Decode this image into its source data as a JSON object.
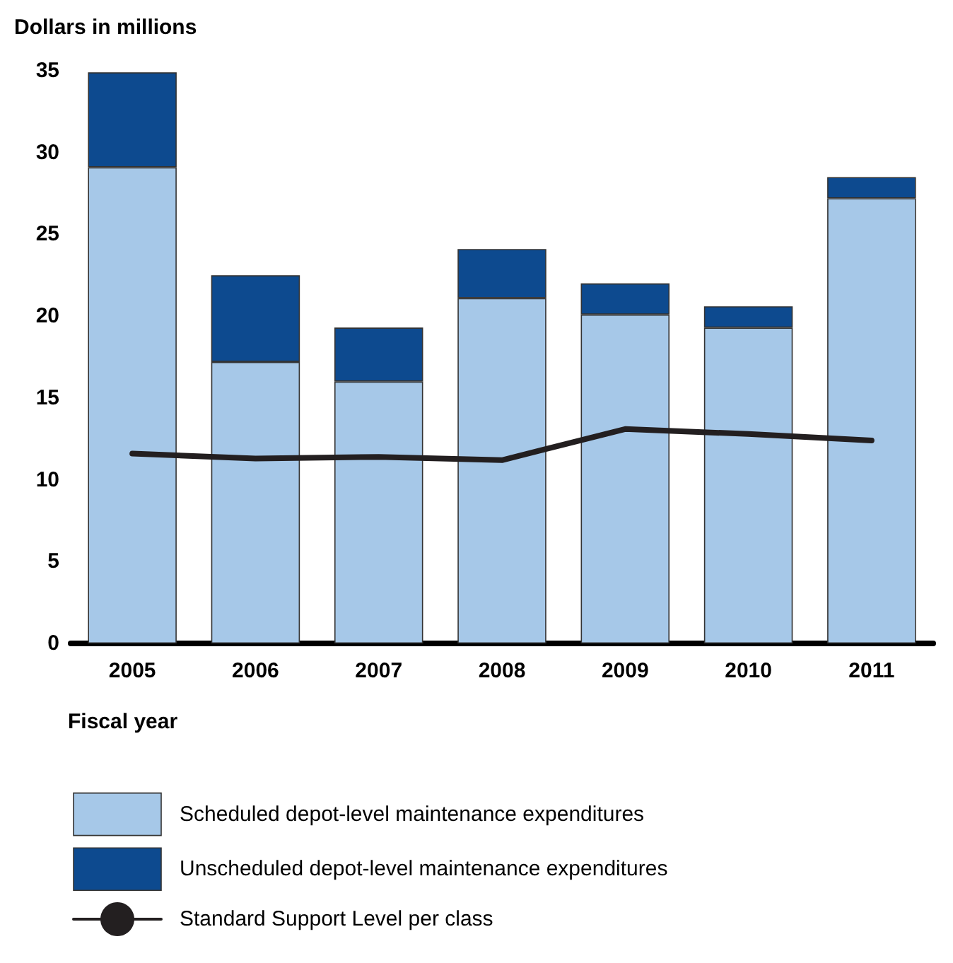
{
  "chart_data": {
    "type": "bar",
    "stacked": true,
    "ylabel": "Dollars in millions",
    "xlabel": "Fiscal year",
    "categories": [
      "2005",
      "2006",
      "2007",
      "2008",
      "2009",
      "2010",
      "2011"
    ],
    "series": [
      {
        "name": "Scheduled depot-level maintenance expenditures",
        "color": "#a6c8e8",
        "values": [
          29.1,
          17.2,
          16.0,
          21.1,
          20.1,
          19.3,
          27.2
        ]
      },
      {
        "name": "Unscheduled depot-level maintenance expenditures",
        "color": "#0d4a8f",
        "values": [
          5.8,
          5.3,
          3.3,
          3.0,
          1.9,
          1.3,
          1.3
        ]
      },
      {
        "name": "Standard Support Level per class",
        "type": "line",
        "color": "#231f20",
        "values": [
          11.6,
          11.3,
          11.4,
          11.2,
          13.1,
          12.8,
          12.4
        ]
      }
    ],
    "ylim": [
      0,
      35
    ],
    "yticks": [
      0,
      5,
      10,
      15,
      20,
      25,
      30,
      35
    ],
    "grid": false,
    "legend": "bottom",
    "marker": "none",
    "line_style": "solid"
  }
}
